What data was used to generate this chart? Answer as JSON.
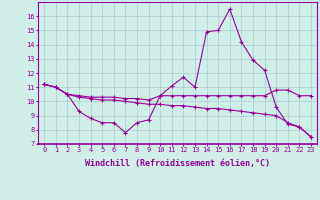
{
  "xlabel": "Windchill (Refroidissement éolien,°C)",
  "x_values": [
    0,
    1,
    2,
    3,
    4,
    5,
    6,
    7,
    8,
    9,
    10,
    11,
    12,
    13,
    14,
    15,
    16,
    17,
    18,
    19,
    20,
    21,
    22,
    23
  ],
  "series1": [
    11.2,
    11.0,
    10.5,
    9.3,
    8.8,
    8.5,
    8.5,
    7.8,
    8.5,
    8.7,
    10.4,
    11.1,
    11.7,
    11.0,
    14.9,
    15.0,
    16.5,
    14.2,
    12.9,
    12.2,
    9.6,
    8.4,
    8.2,
    7.5
  ],
  "series2": [
    11.2,
    11.0,
    10.5,
    10.4,
    10.3,
    10.3,
    10.3,
    10.2,
    10.2,
    10.1,
    10.4,
    10.4,
    10.4,
    10.4,
    10.4,
    10.4,
    10.4,
    10.4,
    10.4,
    10.4,
    10.8,
    10.8,
    10.4,
    10.4
  ],
  "series3": [
    11.2,
    11.0,
    10.5,
    10.3,
    10.2,
    10.1,
    10.1,
    10.0,
    9.9,
    9.8,
    9.8,
    9.7,
    9.7,
    9.6,
    9.5,
    9.5,
    9.4,
    9.3,
    9.2,
    9.1,
    9.0,
    8.5,
    8.2,
    7.5
  ],
  "ylim": [
    7,
    17
  ],
  "yticks": [
    7,
    8,
    9,
    10,
    11,
    12,
    13,
    14,
    15,
    16
  ],
  "bg_color": "#d0eee8",
  "line_color": "#990099",
  "grid_color": "#aacccc",
  "tick_fontsize": 5.0,
  "label_fontsize": 6.0
}
